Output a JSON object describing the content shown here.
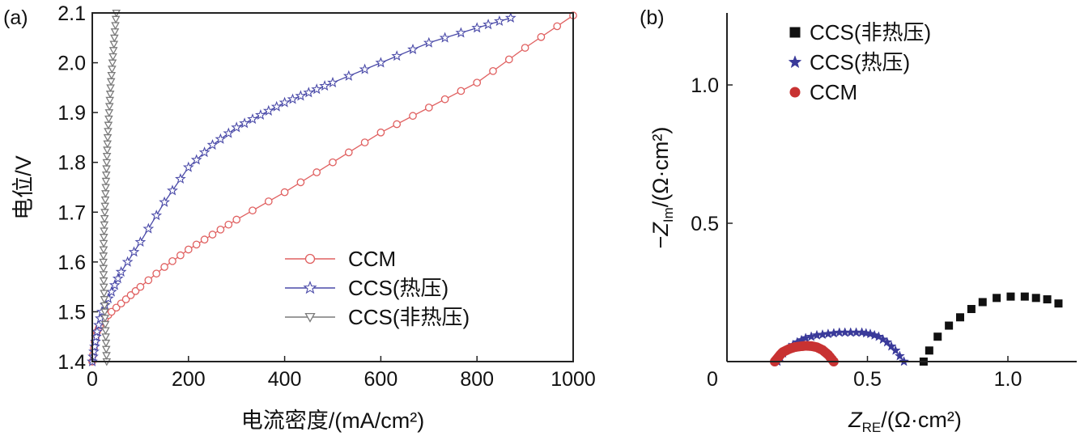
{
  "chart_data": [
    {
      "panel_label": "(a)",
      "type": "line",
      "xlabel": "电流密度/(mA/cm²)",
      "ylabel": "电位/V",
      "xlim": [
        0,
        1000
      ],
      "ylim": [
        1.4,
        2.1
      ],
      "xticks": [
        "0",
        "200",
        "400",
        "600",
        "800",
        "1000"
      ],
      "yticks": [
        "1.4",
        "1.5",
        "1.6",
        "1.7",
        "1.8",
        "1.9",
        "2.0",
        "2.1"
      ],
      "legend_position": "bottom-right",
      "series": [
        {
          "name": "CCM",
          "marker": "circle",
          "color": "#e06060",
          "x": [
            0,
            5,
            10,
            20,
            40,
            70,
            100,
            150,
            200,
            250,
            300,
            400,
            500,
            600,
            700,
            800,
            900,
            1000
          ],
          "y": [
            1.4,
            1.44,
            1.46,
            1.48,
            1.5,
            1.525,
            1.55,
            1.59,
            1.625,
            1.655,
            1.685,
            1.74,
            1.8,
            1.86,
            1.91,
            1.96,
            2.03,
            2.095
          ]
        },
        {
          "name": "CCS(热压)",
          "marker": "star",
          "color": "#4a4aa8",
          "x": [
            0,
            5,
            10,
            20,
            40,
            60,
            100,
            150,
            200,
            250,
            300,
            350,
            400,
            450,
            500,
            600,
            700,
            800,
            870
          ],
          "y": [
            1.4,
            1.43,
            1.46,
            1.5,
            1.54,
            1.58,
            1.64,
            1.72,
            1.79,
            1.835,
            1.87,
            1.895,
            1.92,
            1.94,
            1.96,
            2.0,
            2.04,
            2.07,
            2.09
          ]
        },
        {
          "name": "CCS(非热压)",
          "marker": "triangle-down",
          "color": "#7a7a7a",
          "x": [
            30,
            28,
            26,
            24,
            23,
            24,
            26,
            28,
            30,
            32,
            35,
            38,
            42,
            46,
            50
          ],
          "y": [
            1.4,
            1.45,
            1.5,
            1.55,
            1.6,
            1.65,
            1.7,
            1.75,
            1.8,
            1.85,
            1.9,
            1.95,
            2.0,
            2.05,
            2.1
          ]
        }
      ]
    },
    {
      "panel_label": "(b)",
      "type": "scatter",
      "xlabel": "Z_RE/(Ω·cm²)",
      "ylabel": "−Z_Im/(Ω·cm²)",
      "xlim": [
        0,
        1.25
      ],
      "ylim": [
        0,
        1.25
      ],
      "xticks": [
        "0",
        "0.5",
        "1.0"
      ],
      "yticks": [
        "0",
        "0.5",
        "1.0"
      ],
      "legend_position": "top-left",
      "series": [
        {
          "name": "CCS(非热压)",
          "marker": "square",
          "color": "#111111",
          "x": [
            0.7,
            0.72,
            0.75,
            0.79,
            0.83,
            0.87,
            0.91,
            0.96,
            1.01,
            1.06,
            1.1,
            1.14,
            1.18
          ],
          "y": [
            0.0,
            0.04,
            0.09,
            0.13,
            0.16,
            0.19,
            0.215,
            0.23,
            0.235,
            0.235,
            0.23,
            0.225,
            0.21
          ]
        },
        {
          "name": "CCS(热压)",
          "marker": "star",
          "color": "#3a3a9a",
          "x": [
            0.18,
            0.2,
            0.22,
            0.25,
            0.28,
            0.32,
            0.36,
            0.4,
            0.44,
            0.48,
            0.51,
            0.54,
            0.57,
            0.6,
            0.63
          ],
          "y": [
            0.0,
            0.03,
            0.05,
            0.07,
            0.085,
            0.095,
            0.1,
            0.105,
            0.105,
            0.105,
            0.1,
            0.09,
            0.07,
            0.04,
            0.0
          ]
        },
        {
          "name": "CCM",
          "marker": "circle",
          "color": "#c83232",
          "x": [
            0.17,
            0.18,
            0.19,
            0.2,
            0.22,
            0.24,
            0.26,
            0.28,
            0.3,
            0.32,
            0.34,
            0.36,
            0.38
          ],
          "y": [
            0.0,
            0.012,
            0.025,
            0.035,
            0.045,
            0.052,
            0.055,
            0.057,
            0.056,
            0.052,
            0.042,
            0.025,
            0.0
          ]
        }
      ]
    }
  ]
}
